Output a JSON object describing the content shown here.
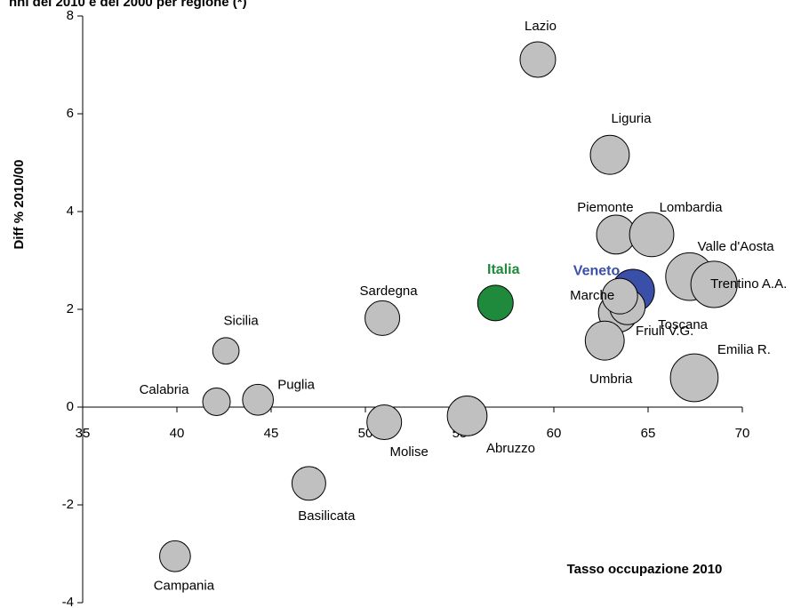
{
  "chart_data": {
    "type": "bubble",
    "title": "nni del 2010 e del 2000 per regione (*)",
    "x_label": "Tasso occupazione 2010",
    "y_label": "Diff % 2010/00",
    "xlim": [
      35,
      70
    ],
    "xticks": [
      35,
      40,
      45,
      50,
      55,
      60,
      65,
      70
    ],
    "ylim": [
      -4,
      8
    ],
    "yticks": [
      -4,
      -2,
      0,
      2,
      4,
      6,
      8
    ],
    "points": [
      {
        "label": "Lazio",
        "x": 59.15,
        "y": 7.11,
        "size": 400,
        "color": "#c0c0c0"
      },
      {
        "label": "Liguria",
        "x": 62.97,
        "y": 5.16,
        "size": 480,
        "color": "#c0c0c0"
      },
      {
        "label": "Piemonte",
        "x": 63.3,
        "y": 3.53,
        "size": 480,
        "color": "#c0c0c0"
      },
      {
        "label": "Lombardia",
        "x": 65.19,
        "y": 3.53,
        "size": 620,
        "color": "#c0c0c0"
      },
      {
        "label": "Valle d'Aosta",
        "x": 67.2,
        "y": 2.67,
        "size": 720,
        "color": "#c0c0c0"
      },
      {
        "label": "Trentino A.A.",
        "x": 68.5,
        "y": 2.51,
        "size": 680,
        "color": "#c0c0c0"
      },
      {
        "label": "Veneto",
        "x": 64.2,
        "y": 2.38,
        "size": 580,
        "color": "#3a4fa8"
      },
      {
        "label": "Toscana",
        "x": 63.4,
        "y": 1.93,
        "size": 480,
        "color": "#c0c0c0"
      },
      {
        "label": "Friuli V.G.",
        "x": 63.9,
        "y": 2.05,
        "size": 400,
        "color": "#c0c0c0"
      },
      {
        "label": "Marche",
        "x": 63.5,
        "y": 2.27,
        "size": 400,
        "color": "#c0c0c0"
      },
      {
        "label": "Umbria",
        "x": 62.7,
        "y": 1.36,
        "size": 480,
        "color": "#c0c0c0"
      },
      {
        "label": "Emilia R.",
        "x": 67.45,
        "y": 0.6,
        "size": 720,
        "color": "#c0c0c0"
      },
      {
        "label": "Italia",
        "x": 56.9,
        "y": 2.13,
        "size": 400,
        "color": "#1f8a3c"
      },
      {
        "label": "Sardegna",
        "x": 50.9,
        "y": 1.82,
        "size": 380,
        "color": "#c0c0c0"
      },
      {
        "label": "Sicilia",
        "x": 42.6,
        "y": 1.15,
        "size": 220,
        "color": "#c0c0c0"
      },
      {
        "label": "Calabria",
        "x": 42.1,
        "y": 0.11,
        "size": 240,
        "color": "#c0c0c0"
      },
      {
        "label": "Puglia",
        "x": 44.3,
        "y": 0.15,
        "size": 300,
        "color": "#c0c0c0"
      },
      {
        "label": "Molise",
        "x": 51.0,
        "y": -0.31,
        "size": 380,
        "color": "#c0c0c0"
      },
      {
        "label": "Abruzzo",
        "x": 55.4,
        "y": -0.18,
        "size": 500,
        "color": "#c0c0c0"
      },
      {
        "label": "Basilicata",
        "x": 47.0,
        "y": -1.56,
        "size": 360,
        "color": "#c0c0c0"
      },
      {
        "label": "Campania",
        "x": 39.9,
        "y": -3.05,
        "size": 300,
        "color": "#c0c0c0"
      }
    ]
  }
}
